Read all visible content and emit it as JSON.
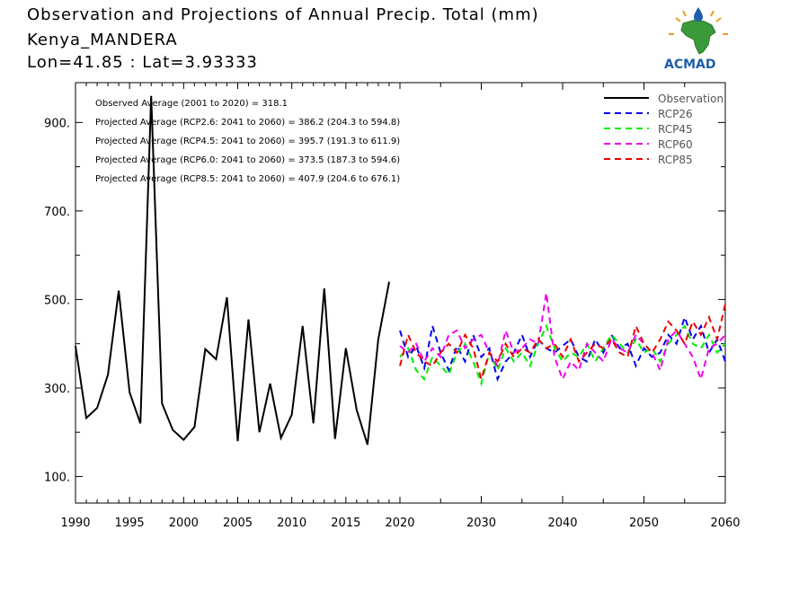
{
  "header": {
    "title": "Observation and Projections of Annual Precip. Total (mm)",
    "location": "Kenya_MANDERA",
    "coords": "Lon=41.85 : Lat=3.93333"
  },
  "logo": {
    "text": "ACMAD"
  },
  "colors": {
    "observation": "#000000",
    "rcp26": "#0000ee",
    "rcp45": "#00ee00",
    "rcp60": "#ee00ee",
    "rcp85": "#ee0000",
    "logo_blue": "#1e5fa8",
    "logo_green": "#3a9a3a",
    "logo_orange": "#e8a020"
  },
  "chart_data": {
    "type": "line",
    "title": "Observation and Projections of Annual Precip. Total (mm)",
    "xlim": [
      1990,
      2060
    ],
    "ylim": [
      40,
      990
    ],
    "y_ticks": [
      100,
      300,
      500,
      700,
      900
    ],
    "y_tick_labels": [
      "100.",
      "300.",
      "500.",
      "700.",
      "900."
    ],
    "x_ticks": [
      1990,
      1995,
      2000,
      2005,
      2010,
      2015,
      2020,
      2030,
      2040,
      2050,
      2060
    ],
    "x_tick_labels": [
      "1990",
      "1995",
      "2000",
      "2005",
      "2010",
      "2015",
      "2020",
      "2030",
      "2040",
      "2050",
      "2060"
    ],
    "grid": false,
    "legend_position": "top-right",
    "annotations": [
      "Observed Average (2001 to 2020) = 318.1",
      "Projected Average (RCP2.6: 2041 to 2060) = 386.2 (204.3 to 594.8)",
      "Projected Average (RCP4.5: 2041 to 2060) = 395.7 (191.3 to 611.9)",
      "Projected Average (RCP6.0: 2041 to 2060) = 373.5 (187.3 to 594.6)",
      "Projected Average (RCP8.5: 2041 to 2060) = 407.9 (204.6 to 676.1)"
    ],
    "series": [
      {
        "name": "Observation",
        "key": "observation",
        "style": "solid",
        "x": [
          1990,
          1991,
          1992,
          1993,
          1994,
          1995,
          1996,
          1997,
          1998,
          1999,
          2000,
          2001,
          2002,
          2003,
          2004,
          2005,
          2006,
          2007,
          2008,
          2009,
          2010,
          2011,
          2012,
          2013,
          2014,
          2015,
          2016,
          2017,
          2018,
          2019,
          2020
        ],
        "values": [
          395,
          232,
          255,
          330,
          520,
          290,
          220,
          960,
          265,
          205,
          183,
          212,
          388,
          365,
          505,
          180,
          455,
          200,
          310,
          187,
          240,
          440,
          220,
          525,
          185,
          390,
          250,
          172,
          410,
          540,
          null
        ]
      },
      {
        "name": "RCP26",
        "key": "rcp26",
        "style": "dashed",
        "x": [
          2020,
          2021,
          2022,
          2023,
          2024,
          2025,
          2026,
          2027,
          2028,
          2029,
          2030,
          2031,
          2032,
          2033,
          2034,
          2035,
          2036,
          2037,
          2038,
          2039,
          2040,
          2041,
          2042,
          2043,
          2044,
          2045,
          2046,
          2047,
          2048,
          2049,
          2050,
          2051,
          2052,
          2053,
          2054,
          2055,
          2056,
          2057,
          2058,
          2059,
          2060
        ],
        "values": [
          430,
          370,
          395,
          345,
          440,
          380,
          340,
          395,
          360,
          420,
          370,
          390,
          320,
          360,
          380,
          420,
          370,
          410,
          390,
          380,
          395,
          410,
          370,
          360,
          410,
          380,
          420,
          390,
          400,
          350,
          390,
          370,
          380,
          420,
          400,
          460,
          410,
          440,
          380,
          410,
          360
        ]
      },
      {
        "name": "RCP45",
        "key": "rcp45",
        "style": "dashed",
        "x": [
          2020,
          2021,
          2022,
          2023,
          2024,
          2025,
          2026,
          2027,
          2028,
          2029,
          2030,
          2031,
          2032,
          2033,
          2034,
          2035,
          2036,
          2037,
          2038,
          2039,
          2040,
          2041,
          2042,
          2043,
          2044,
          2045,
          2046,
          2047,
          2048,
          2049,
          2050,
          2051,
          2052,
          2053,
          2054,
          2055,
          2056,
          2057,
          2058,
          2059,
          2060
        ],
        "values": [
          370,
          390,
          340,
          320,
          370,
          350,
          330,
          380,
          400,
          360,
          310,
          380,
          340,
          390,
          360,
          380,
          350,
          400,
          440,
          390,
          360,
          380,
          370,
          400,
          360,
          390,
          420,
          400,
          380,
          410,
          380,
          390,
          360,
          400,
          420,
          440,
          400,
          390,
          420,
          380,
          400
        ]
      },
      {
        "name": "RCP60",
        "key": "rcp60",
        "style": "dashed",
        "x": [
          2020,
          2021,
          2022,
          2023,
          2024,
          2025,
          2026,
          2027,
          2028,
          2029,
          2030,
          2031,
          2032,
          2033,
          2034,
          2035,
          2036,
          2037,
          2038,
          2039,
          2040,
          2041,
          2042,
          2043,
          2044,
          2045,
          2046,
          2047,
          2048,
          2049,
          2050,
          2051,
          2052,
          2053,
          2054,
          2055,
          2056,
          2057,
          2058,
          2059,
          2060
        ],
        "values": [
          395,
          380,
          400,
          360,
          390,
          370,
          420,
          430,
          390,
          410,
          420,
          380,
          350,
          430,
          380,
          390,
          410,
          400,
          515,
          370,
          320,
          360,
          340,
          400,
          380,
          360,
          410,
          390,
          380,
          420,
          400,
          380,
          340,
          410,
          430,
          400,
          370,
          320,
          390,
          400,
          420
        ]
      },
      {
        "name": "RCP85",
        "key": "rcp85",
        "style": "dashed",
        "x": [
          2020,
          2021,
          2022,
          2023,
          2024,
          2025,
          2026,
          2027,
          2028,
          2029,
          2030,
          2031,
          2032,
          2033,
          2034,
          2035,
          2036,
          2037,
          2038,
          2039,
          2040,
          2041,
          2042,
          2043,
          2044,
          2045,
          2046,
          2047,
          2048,
          2049,
          2050,
          2051,
          2052,
          2053,
          2054,
          2055,
          2056,
          2057,
          2058,
          2059,
          2060
        ],
        "values": [
          350,
          420,
          380,
          360,
          350,
          380,
          400,
          380,
          420,
          390,
          320,
          380,
          360,
          400,
          370,
          390,
          380,
          410,
          390,
          400,
          370,
          410,
          360,
          380,
          400,
          390,
          410,
          380,
          370,
          440,
          400,
          380,
          410,
          450,
          430,
          400,
          450,
          420,
          460,
          410,
          490
        ]
      }
    ]
  }
}
